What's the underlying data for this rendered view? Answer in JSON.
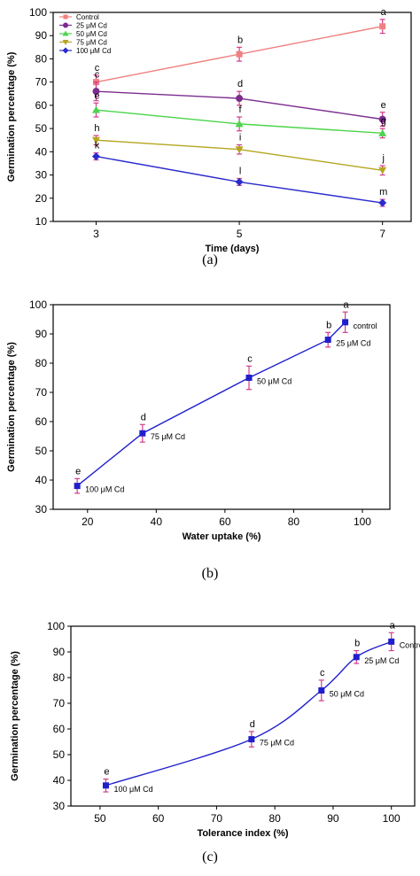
{
  "chart_data": [
    {
      "id": "a",
      "type": "line",
      "panel_label": "(a)",
      "xlabel": "Time (days)",
      "ylabel": "Germination percentage (%)",
      "x": [
        3,
        5,
        7
      ],
      "xticks": [
        "3",
        "5",
        "7"
      ],
      "xlim": [
        2.4,
        7.4
      ],
      "ylim": [
        10,
        100
      ],
      "yticks": [
        10,
        20,
        30,
        40,
        50,
        60,
        70,
        80,
        90,
        100
      ],
      "legend_position": "top-left",
      "series": [
        {
          "name": "Control",
          "color": "#f08080",
          "marker": "square",
          "values": [
            70,
            82,
            94
          ],
          "errors": [
            3,
            3,
            3
          ],
          "letters": [
            "c",
            "b",
            "a"
          ]
        },
        {
          "name": "25 μM Cd",
          "color": "#7b2d8e",
          "marker": "circle",
          "values": [
            66,
            63,
            54
          ],
          "errors": [
            4,
            3,
            3
          ],
          "letters": [
            "c",
            "d",
            "e"
          ]
        },
        {
          "name": "50 μM Cd",
          "color": "#4cd44c",
          "marker": "triangle-up",
          "values": [
            58,
            52,
            48
          ],
          "errors": [
            3,
            3,
            2
          ],
          "letters": [
            "e",
            "f",
            "g"
          ]
        },
        {
          "name": "75 μM Cd",
          "color": "#b5a520",
          "marker": "triangle-down",
          "values": [
            45,
            41,
            32
          ],
          "errors": [
            2,
            2,
            2
          ],
          "letters": [
            "h",
            "i",
            "j"
          ]
        },
        {
          "name": "100 μM Cd",
          "color": "#2b2bcc",
          "marker": "diamond",
          "values": [
            38,
            27,
            18
          ],
          "errors": [
            1.5,
            1.5,
            1.5
          ],
          "letters": [
            "k",
            "l",
            "m"
          ]
        }
      ]
    },
    {
      "id": "b",
      "type": "line",
      "panel_label": "(b)",
      "xlabel": "Water uptake (%)",
      "ylabel": "Germination percentage (%)",
      "xlim": [
        10,
        108
      ],
      "ylim": [
        30,
        100
      ],
      "xticks": [
        20,
        40,
        60,
        80,
        100
      ],
      "yticks": [
        30,
        40,
        50,
        60,
        70,
        80,
        90,
        100
      ],
      "series": [
        {
          "color": "#1f1fcc",
          "x": [
            17,
            36,
            67,
            90,
            95
          ],
          "values": [
            38,
            56,
            75,
            88,
            94
          ],
          "errors": [
            2.5,
            3,
            4,
            2.5,
            3.5
          ],
          "letters": [
            "e",
            "d",
            "c",
            "b",
            "a"
          ],
          "point_labels": [
            "100 μM Cd",
            "75 μM Cd",
            "50 μM Cd",
            "25 μM Cd",
            "control"
          ]
        }
      ]
    },
    {
      "id": "c",
      "type": "line",
      "panel_label": "(c)",
      "xlabel": "Tolerance index (%)",
      "ylabel": "Germination percentage (%)",
      "xlim": [
        45,
        104
      ],
      "ylim": [
        30,
        100
      ],
      "xticks": [
        50,
        60,
        70,
        80,
        90,
        100
      ],
      "yticks": [
        30,
        40,
        50,
        60,
        70,
        80,
        90,
        100
      ],
      "series": [
        {
          "color": "#1f1fcc",
          "smooth": true,
          "x": [
            51,
            76,
            88,
            94,
            100
          ],
          "values": [
            38,
            56,
            75,
            88,
            94
          ],
          "errors": [
            2.5,
            3,
            4,
            2.5,
            3.5
          ],
          "letters": [
            "e",
            "d",
            "c",
            "b",
            "a"
          ],
          "point_labels": [
            "100 μM Cd",
            "75 μM Cd",
            "50 μM Cd",
            "25 μM Cd",
            "Control"
          ]
        }
      ]
    }
  ],
  "colors": {
    "error_bar": "#d23c8c",
    "axis": "#000000"
  }
}
